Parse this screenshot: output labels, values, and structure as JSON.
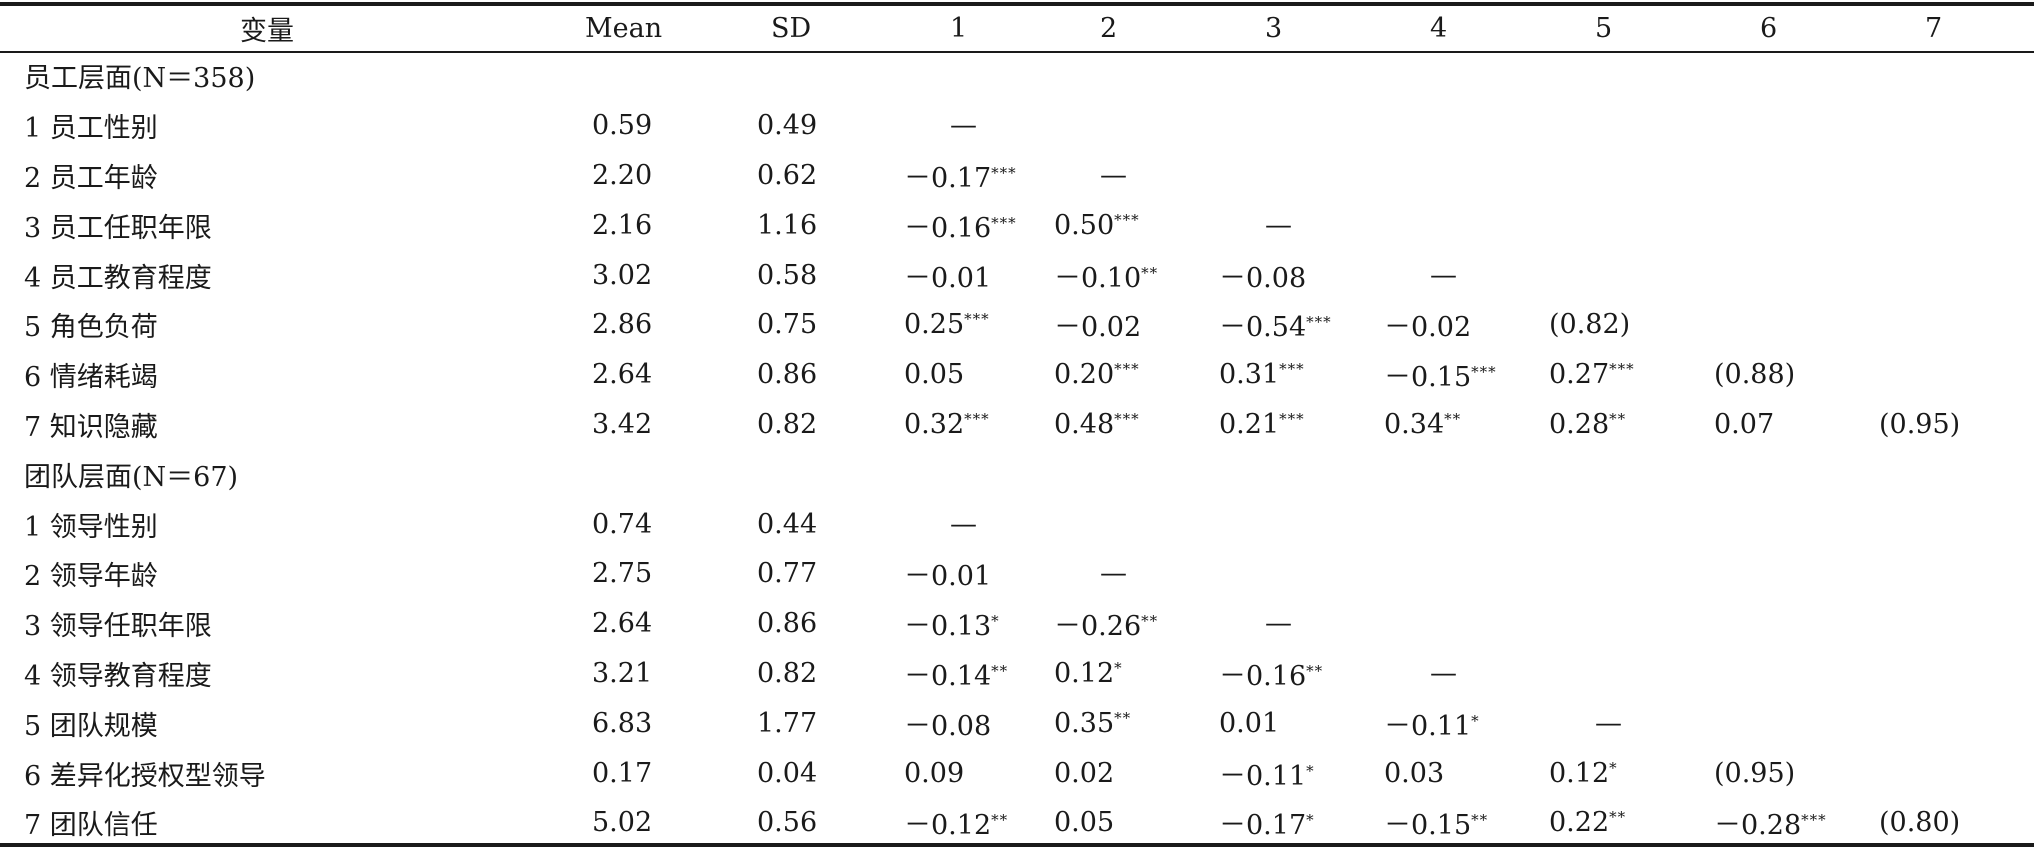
{
  "header": {
    "variable": "变量",
    "mean": "Mean",
    "sd": "SD",
    "cols": [
      "1",
      "2",
      "3",
      "4",
      "5",
      "6",
      "7"
    ]
  },
  "sections": [
    {
      "title": "员工层面(N＝358)",
      "rows": [
        {
          "label": "1 员工性别",
          "mean": "0.59",
          "sd": "0.49",
          "cells": [
            {
              "v": "—",
              "s": ""
            },
            {
              "v": "",
              "s": ""
            },
            {
              "v": "",
              "s": ""
            },
            {
              "v": "",
              "s": ""
            },
            {
              "v": "",
              "s": ""
            },
            {
              "v": "",
              "s": ""
            },
            {
              "v": "",
              "s": ""
            }
          ]
        },
        {
          "label": "2 员工年龄",
          "mean": "2.20",
          "sd": "0.62",
          "cells": [
            {
              "v": "－0.17",
              "s": "***"
            },
            {
              "v": "—",
              "s": ""
            },
            {
              "v": "",
              "s": ""
            },
            {
              "v": "",
              "s": ""
            },
            {
              "v": "",
              "s": ""
            },
            {
              "v": "",
              "s": ""
            },
            {
              "v": "",
              "s": ""
            }
          ]
        },
        {
          "label": "3 员工任职年限",
          "mean": "2.16",
          "sd": "1.16",
          "cells": [
            {
              "v": "－0.16",
              "s": "***"
            },
            {
              "v": "0.50",
              "s": "***"
            },
            {
              "v": "—",
              "s": ""
            },
            {
              "v": "",
              "s": ""
            },
            {
              "v": "",
              "s": ""
            },
            {
              "v": "",
              "s": ""
            },
            {
              "v": "",
              "s": ""
            }
          ]
        },
        {
          "label": "4 员工教育程度",
          "mean": "3.02",
          "sd": "0.58",
          "cells": [
            {
              "v": "－0.01",
              "s": ""
            },
            {
              "v": "－0.10",
              "s": "**"
            },
            {
              "v": "－0.08",
              "s": ""
            },
            {
              "v": "—",
              "s": ""
            },
            {
              "v": "",
              "s": ""
            },
            {
              "v": "",
              "s": ""
            },
            {
              "v": "",
              "s": ""
            }
          ]
        },
        {
          "label": "5 角色负荷",
          "mean": "2.86",
          "sd": "0.75",
          "cells": [
            {
              "v": "0.25",
              "s": "***"
            },
            {
              "v": "－0.02",
              "s": ""
            },
            {
              "v": "－0.54",
              "s": "***"
            },
            {
              "v": "－0.02",
              "s": ""
            },
            {
              "v": "(0.82)",
              "s": ""
            },
            {
              "v": "",
              "s": ""
            },
            {
              "v": "",
              "s": ""
            }
          ]
        },
        {
          "label": "6 情绪耗竭",
          "mean": "2.64",
          "sd": "0.86",
          "cells": [
            {
              "v": "0.05",
              "s": ""
            },
            {
              "v": "0.20",
              "s": "***"
            },
            {
              "v": "0.31",
              "s": "***"
            },
            {
              "v": "－0.15",
              "s": "***"
            },
            {
              "v": "0.27",
              "s": "***"
            },
            {
              "v": "(0.88)",
              "s": ""
            },
            {
              "v": "",
              "s": ""
            }
          ]
        },
        {
          "label": "7 知识隐藏",
          "mean": "3.42",
          "sd": "0.82",
          "cells": [
            {
              "v": "0.32",
              "s": "***"
            },
            {
              "v": "0.48",
              "s": "***"
            },
            {
              "v": "0.21",
              "s": "***"
            },
            {
              "v": "0.34",
              "s": "**"
            },
            {
              "v": "0.28",
              "s": "**"
            },
            {
              "v": "0.07",
              "s": ""
            },
            {
              "v": "(0.95)",
              "s": ""
            }
          ]
        }
      ]
    },
    {
      "title": "团队层面(N＝67)",
      "rows": [
        {
          "label": "1 领导性别",
          "mean": "0.74",
          "sd": "0.44",
          "cells": [
            {
              "v": "—",
              "s": ""
            },
            {
              "v": "",
              "s": ""
            },
            {
              "v": "",
              "s": ""
            },
            {
              "v": "",
              "s": ""
            },
            {
              "v": "",
              "s": ""
            },
            {
              "v": "",
              "s": ""
            },
            {
              "v": "",
              "s": ""
            }
          ]
        },
        {
          "label": "2 领导年龄",
          "mean": "2.75",
          "sd": "0.77",
          "cells": [
            {
              "v": "－0.01",
              "s": ""
            },
            {
              "v": "—",
              "s": ""
            },
            {
              "v": "",
              "s": ""
            },
            {
              "v": "",
              "s": ""
            },
            {
              "v": "",
              "s": ""
            },
            {
              "v": "",
              "s": ""
            },
            {
              "v": "",
              "s": ""
            }
          ]
        },
        {
          "label": "3 领导任职年限",
          "mean": "2.64",
          "sd": "0.86",
          "cells": [
            {
              "v": "－0.13",
              "s": "*"
            },
            {
              "v": "－0.26",
              "s": "**"
            },
            {
              "v": "—",
              "s": ""
            },
            {
              "v": "",
              "s": ""
            },
            {
              "v": "",
              "s": ""
            },
            {
              "v": "",
              "s": ""
            },
            {
              "v": "",
              "s": ""
            }
          ]
        },
        {
          "label": "4 领导教育程度",
          "mean": "3.21",
          "sd": "0.82",
          "cells": [
            {
              "v": "－0.14",
              "s": "**"
            },
            {
              "v": "0.12",
              "s": "*"
            },
            {
              "v": "－0.16",
              "s": "**"
            },
            {
              "v": "—",
              "s": ""
            },
            {
              "v": "",
              "s": ""
            },
            {
              "v": "",
              "s": ""
            },
            {
              "v": "",
              "s": ""
            }
          ]
        },
        {
          "label": "5 团队规模",
          "mean": "6.83",
          "sd": "1.77",
          "cells": [
            {
              "v": "－0.08",
              "s": ""
            },
            {
              "v": "0.35",
              "s": "**"
            },
            {
              "v": "0.01",
              "s": ""
            },
            {
              "v": "－0.11",
              "s": "*"
            },
            {
              "v": "—",
              "s": ""
            },
            {
              "v": "",
              "s": ""
            },
            {
              "v": "",
              "s": ""
            }
          ]
        },
        {
          "label": "6 差异化授权型领导",
          "mean": "0.17",
          "sd": "0.04",
          "cells": [
            {
              "v": "0.09",
              "s": ""
            },
            {
              "v": "0.02",
              "s": ""
            },
            {
              "v": "－0.11",
              "s": "*"
            },
            {
              "v": "0.03",
              "s": ""
            },
            {
              "v": "0.12",
              "s": "*"
            },
            {
              "v": "(0.95)",
              "s": ""
            },
            {
              "v": "",
              "s": ""
            }
          ]
        },
        {
          "label": "7 团队信任",
          "mean": "5.02",
          "sd": "0.56",
          "cells": [
            {
              "v": "－0.12",
              "s": "**"
            },
            {
              "v": "0.05",
              "s": ""
            },
            {
              "v": "－0.17",
              "s": "*"
            },
            {
              "v": "－0.15",
              "s": "**"
            },
            {
              "v": "0.22",
              "s": "**"
            },
            {
              "v": "－0.28",
              "s": "***"
            },
            {
              "v": "(0.80)",
              "s": ""
            }
          ]
        }
      ]
    }
  ]
}
